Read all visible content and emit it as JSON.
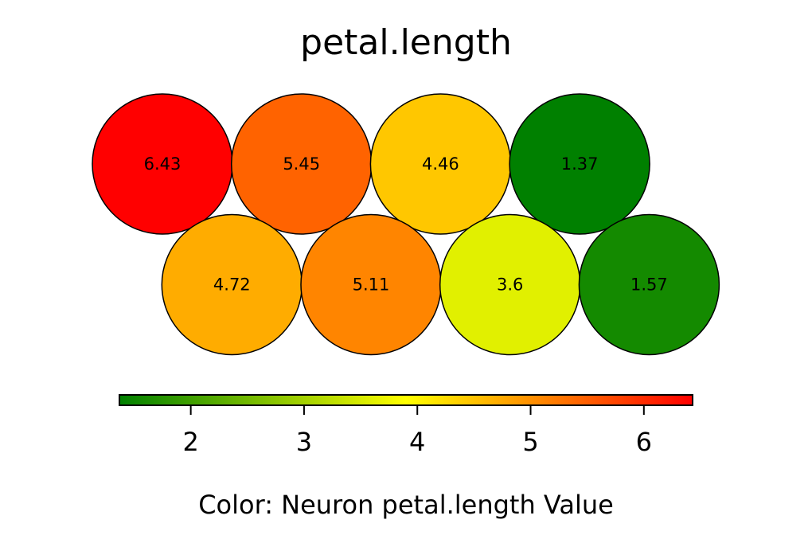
{
  "chart_data": {
    "type": "hexbin-som",
    "title": "petal.length",
    "rows": [
      [
        6.43,
        5.45,
        4.46,
        1.37
      ],
      [
        4.72,
        5.11,
        3.6,
        1.57
      ]
    ],
    "colorbar": {
      "label": "Color: Neuron petal.length Value",
      "range": [
        1.37,
        6.43
      ],
      "ticks": [
        2,
        3,
        4,
        5,
        6
      ],
      "tick_labels": [
        "2",
        "3",
        "4",
        "5",
        "6"
      ],
      "colormap": [
        "#008000",
        "#ffff00",
        "#ff0000"
      ],
      "orientation": "horizontal",
      "placement": "bottom"
    },
    "grid": false
  }
}
